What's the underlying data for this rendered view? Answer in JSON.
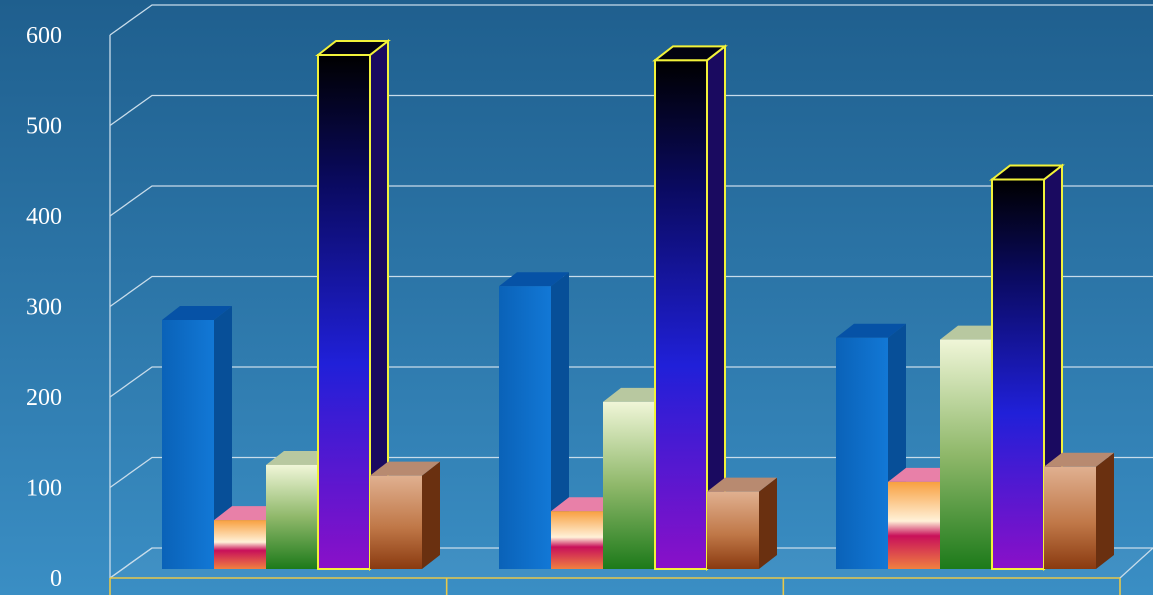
{
  "chart_data": {
    "type": "bar",
    "title": "",
    "xlabel": "",
    "ylabel": "",
    "categories": [
      "",
      "",
      ""
    ],
    "ylim": [
      0,
      600
    ],
    "yticks": [
      0,
      100,
      200,
      300,
      400,
      500,
      600
    ],
    "grid": true,
    "legend": "none",
    "series": [
      {
        "values": [
          280,
          318,
          260
        ],
        "color": "#0d6fc9"
      },
      {
        "values": [
          55,
          65,
          98
        ],
        "color": "#f6a64a"
      },
      {
        "values": [
          117,
          188,
          258
        ],
        "color": "#5fa05a"
      },
      {
        "values": [
          578,
          572,
          438
        ],
        "color": "#2a1ad0"
      },
      {
        "values": [
          105,
          87,
          115
        ],
        "color": "#c98a5a"
      }
    ]
  },
  "colors": {
    "background_top": "#1f5f8e",
    "background_bottom": "#3a8ec4",
    "grid": "#c8dcea",
    "category_divider": "#e8c84a",
    "highlight_outline": "#f2f23a"
  }
}
